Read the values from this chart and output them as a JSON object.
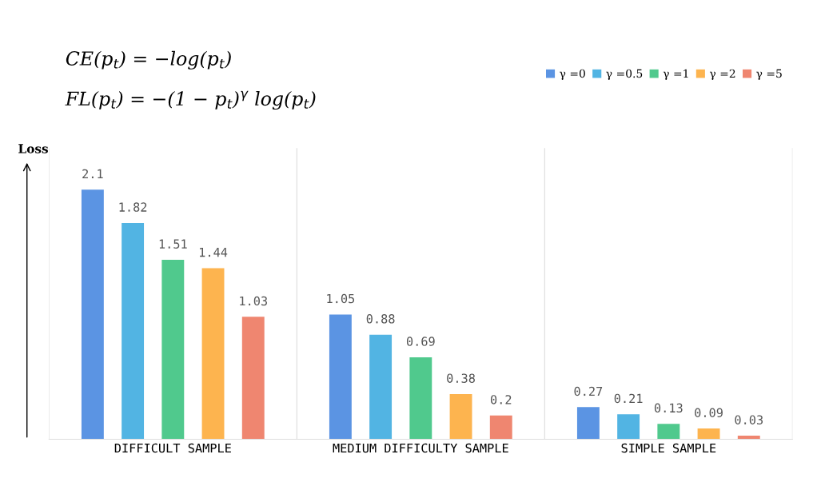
{
  "chart_data": {
    "type": "bar",
    "categories": [
      "DIFFICULT SAMPLE",
      "MEDIUM DIFFICULTY SAMPLE",
      "SIMPLE SAMPLE"
    ],
    "series": [
      {
        "name": "γ =0",
        "color": "#5b94e3",
        "values": [
          2.1,
          1.05,
          0.27
        ]
      },
      {
        "name": "γ =0.5",
        "color": "#52b4e3",
        "values": [
          1.82,
          0.88,
          0.21
        ]
      },
      {
        "name": "γ =1",
        "color": "#50c98d",
        "values": [
          1.51,
          0.69,
          0.13
        ]
      },
      {
        "name": "γ =2",
        "color": "#fdb44f",
        "values": [
          1.44,
          0.38,
          0.09
        ]
      },
      {
        "name": "γ =5",
        "color": "#ef8670",
        "values": [
          1.03,
          0.2,
          0.03
        ]
      }
    ],
    "ylabel": "Loss",
    "ylim": [
      0,
      2.45
    ],
    "tick_labels": "x",
    "data_labels": true,
    "grid": "x",
    "legend": "top right",
    "annotations": [
      "CE(p$_{t}$) = −log(p$_{t}$)",
      "FL(p$_{t}$) = −(1 − p$_{t}$)$^{γ}$ log(p$_{t}$)"
    ]
  }
}
